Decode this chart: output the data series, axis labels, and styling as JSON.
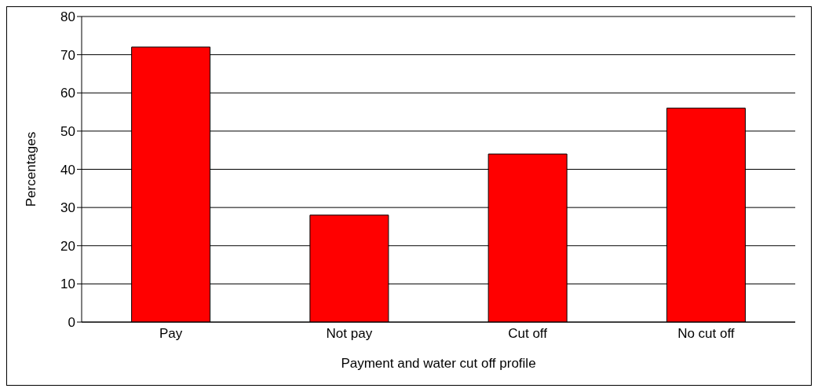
{
  "chart_data": {
    "type": "bar",
    "xlabel": "Payment and water cut off profile",
    "ylabel": "Percentages",
    "categories": [
      "Pay",
      "Not pay",
      "Cut off",
      "No cut off"
    ],
    "values": [
      72,
      28,
      44,
      56
    ],
    "color": "#ff0000",
    "ylim": [
      0,
      80
    ],
    "yticks": [
      0,
      10,
      20,
      30,
      40,
      50,
      60,
      70,
      80
    ],
    "grid": "y"
  }
}
